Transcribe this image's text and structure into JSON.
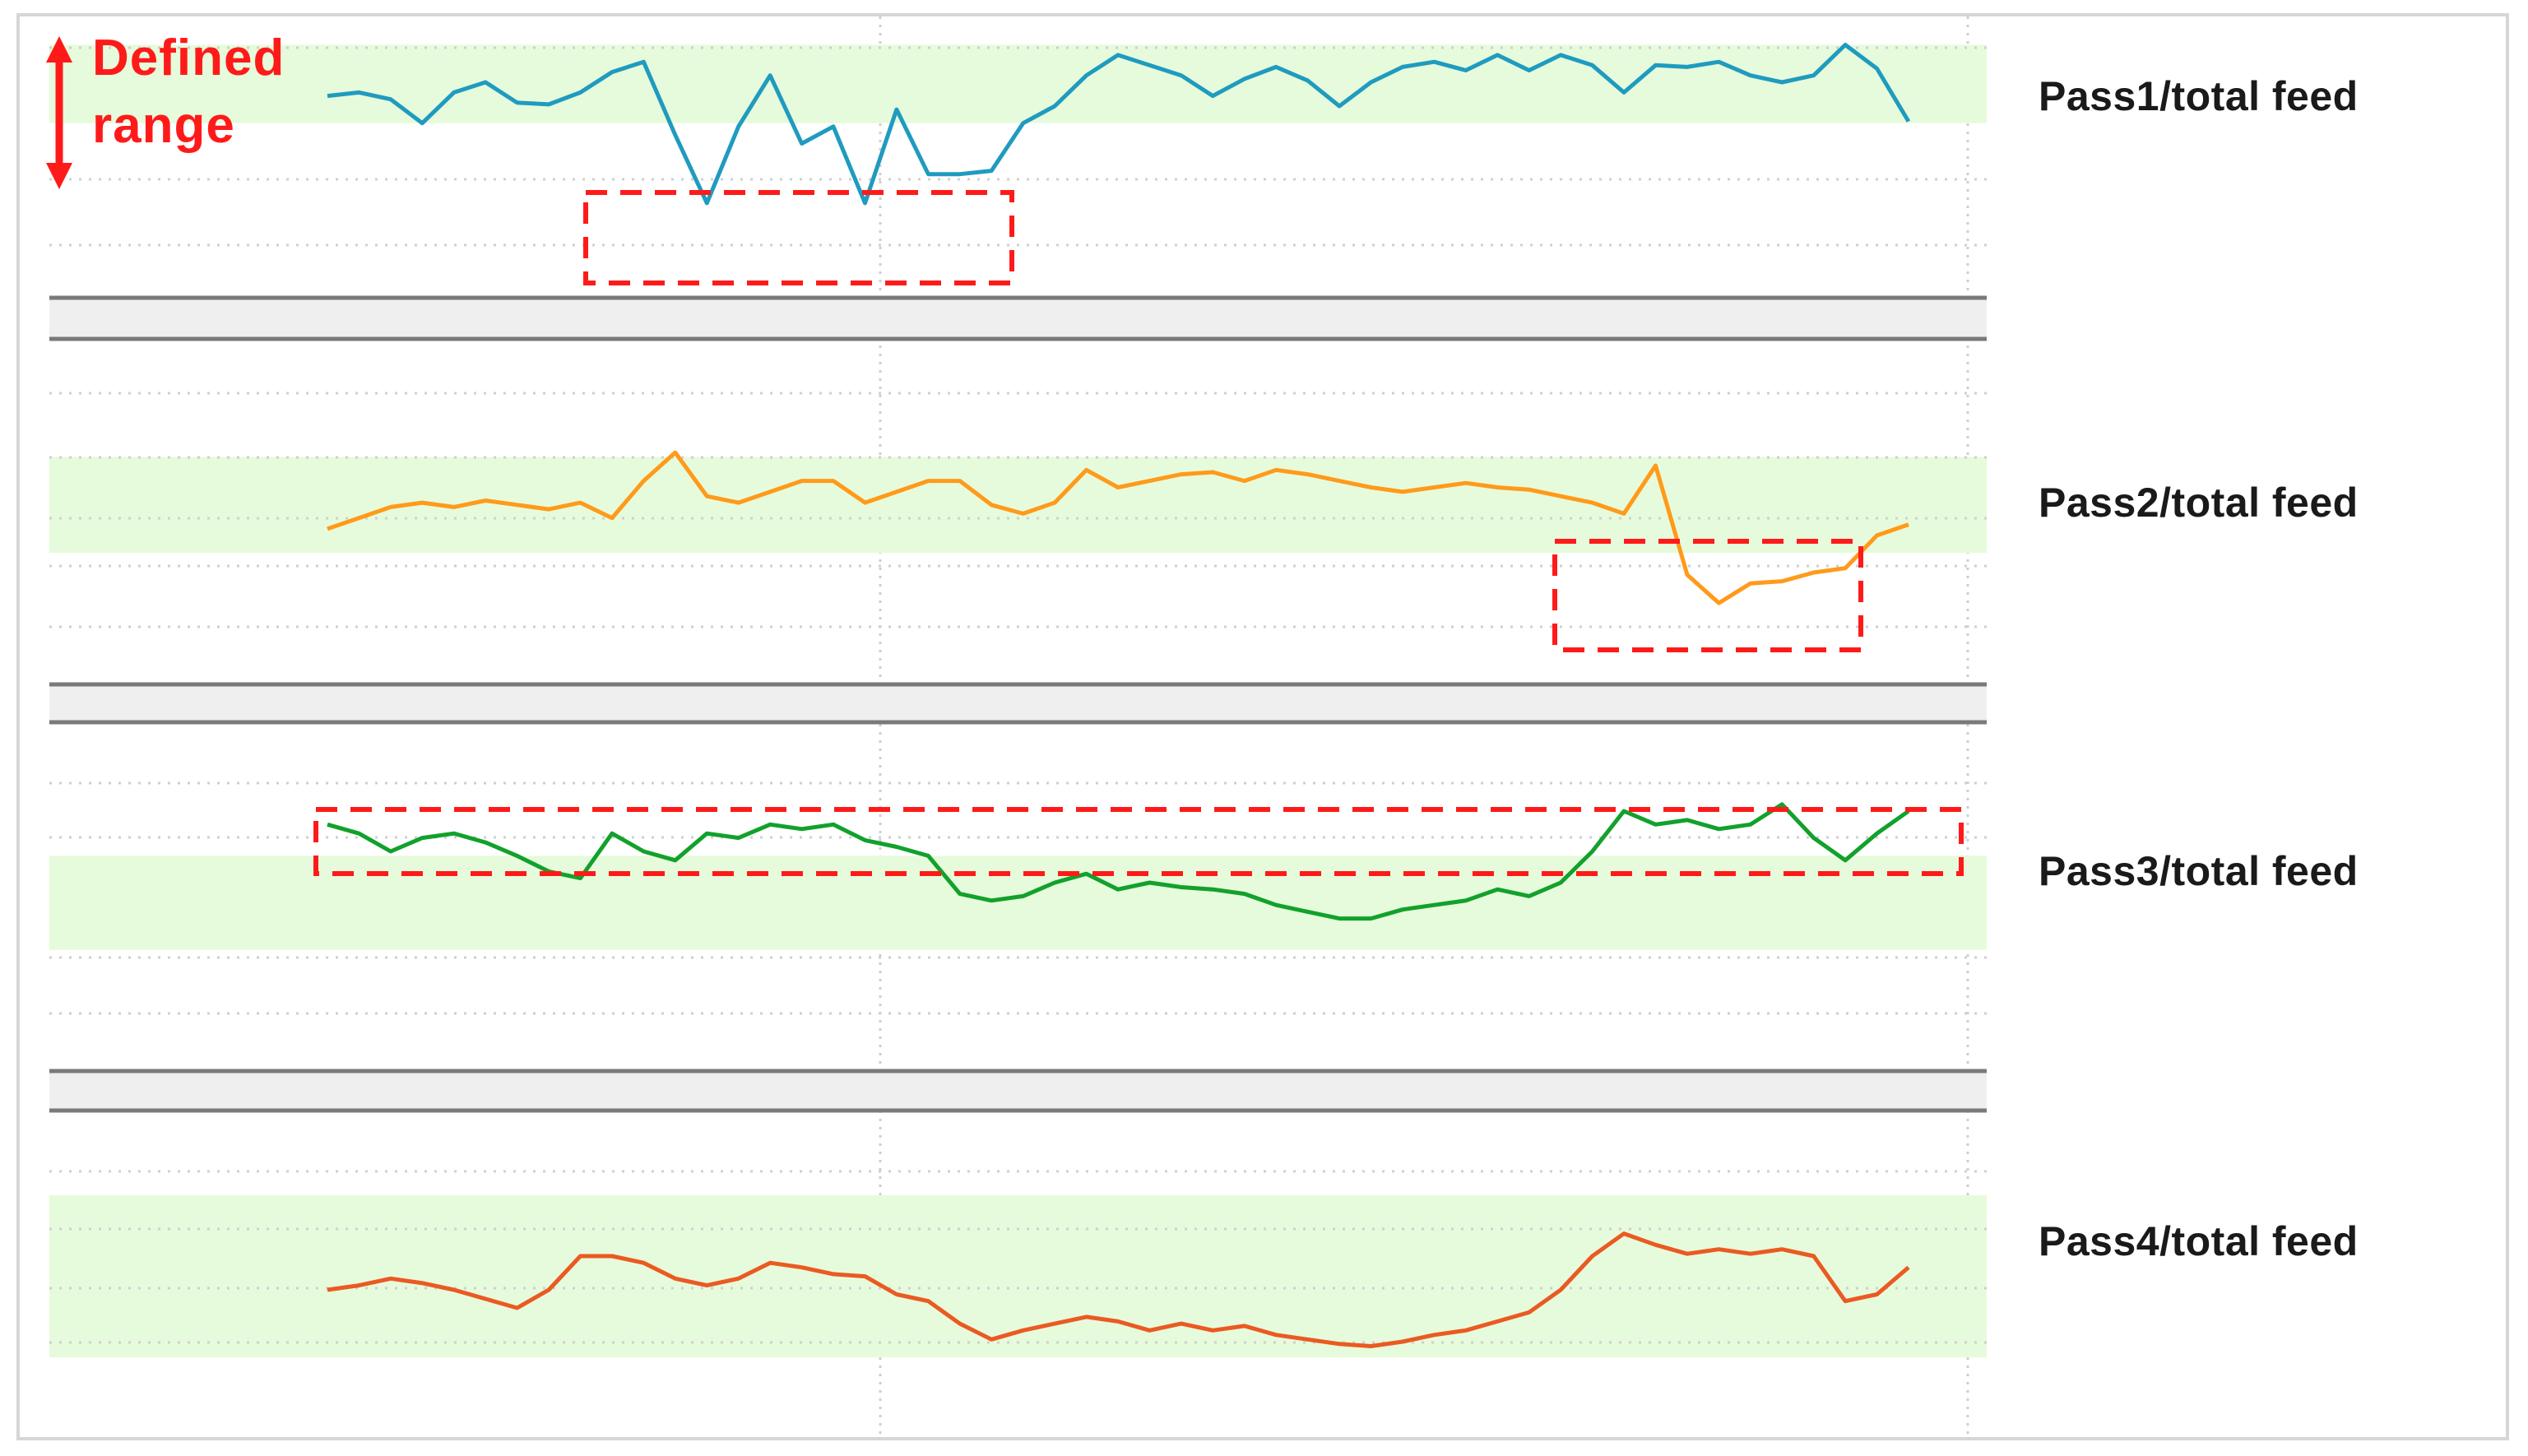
{
  "annotation": {
    "line1": "Defined",
    "line2": "range",
    "color": "#ff1a1a"
  },
  "colors": {
    "band": "#e6fbdb",
    "grid": "#cfcfcf",
    "highlight_box": "#ff1a1a",
    "separator": "#7a7a7a"
  },
  "chart_data": [
    {
      "type": "line",
      "label": "Pass1/total feed",
      "color": "#1f9bbf",
      "grid": true,
      "x": [
        0,
        2,
        4,
        6,
        8,
        10,
        12,
        14,
        16,
        18,
        20,
        22,
        24,
        26,
        28,
        30,
        32,
        34,
        36,
        38,
        40,
        42,
        44,
        46,
        48,
        50,
        52,
        54,
        56,
        58,
        60,
        62,
        64,
        66,
        68,
        70,
        72,
        74,
        76,
        78,
        80,
        82,
        84,
        86,
        88,
        90,
        92,
        94,
        96,
        98,
        100
      ],
      "values": [
        0.78,
        0.8,
        0.76,
        0.62,
        0.8,
        0.86,
        0.74,
        0.73,
        0.8,
        0.92,
        0.98,
        0.55,
        0.15,
        0.6,
        0.9,
        0.5,
        0.6,
        0.15,
        0.7,
        0.32,
        0.32,
        0.34,
        0.62,
        0.72,
        0.9,
        1.02,
        0.96,
        0.9,
        0.78,
        0.88,
        0.95,
        0.87,
        0.72,
        0.86,
        0.95,
        0.98,
        0.93,
        1.02,
        0.93,
        1.02,
        0.96,
        0.8,
        0.96,
        0.95,
        0.98,
        0.9,
        0.86,
        0.9,
        1.08,
        0.94,
        0.63
      ],
      "band": [
        0.62,
        1.08
      ]
    },
    {
      "type": "line",
      "label": "Pass2/total feed",
      "color": "#ff9a1a",
      "grid": true,
      "x": [
        0,
        2,
        4,
        6,
        8,
        10,
        12,
        14,
        16,
        18,
        20,
        22,
        24,
        26,
        28,
        30,
        32,
        34,
        36,
        38,
        40,
        42,
        44,
        46,
        48,
        50,
        52,
        54,
        56,
        58,
        60,
        62,
        64,
        66,
        68,
        70,
        72,
        74,
        76,
        78,
        80,
        82,
        84,
        86,
        88,
        90,
        92,
        94,
        96,
        98,
        100
      ],
      "values": [
        0.33,
        0.38,
        0.43,
        0.45,
        0.43,
        0.46,
        0.44,
        0.42,
        0.45,
        0.38,
        0.55,
        0.68,
        0.48,
        0.45,
        0.5,
        0.55,
        0.55,
        0.45,
        0.5,
        0.55,
        0.55,
        0.44,
        0.4,
        0.45,
        0.6,
        0.52,
        0.55,
        0.58,
        0.59,
        0.55,
        0.6,
        0.58,
        0.55,
        0.52,
        0.5,
        0.52,
        0.54,
        0.52,
        0.51,
        0.48,
        0.45,
        0.4,
        0.62,
        0.12,
        -0.01,
        0.08,
        0.09,
        0.13,
        0.15,
        0.3,
        0.35
      ],
      "band": [
        0.22,
        0.66
      ]
    },
    {
      "type": "line",
      "label": "Pass3/total feed",
      "color": "#12a12c",
      "grid": true,
      "x": [
        0,
        2,
        4,
        6,
        8,
        10,
        12,
        14,
        16,
        18,
        20,
        22,
        24,
        26,
        28,
        30,
        32,
        34,
        36,
        38,
        40,
        42,
        44,
        46,
        48,
        50,
        52,
        54,
        56,
        58,
        60,
        62,
        64,
        66,
        68,
        70,
        72,
        74,
        76,
        78,
        80,
        82,
        84,
        86,
        88,
        90,
        92,
        94,
        96,
        98,
        100
      ],
      "values": [
        0.84,
        0.8,
        0.72,
        0.78,
        0.8,
        0.76,
        0.7,
        0.63,
        0.6,
        0.8,
        0.72,
        0.68,
        0.8,
        0.78,
        0.84,
        0.82,
        0.84,
        0.77,
        0.74,
        0.7,
        0.53,
        0.5,
        0.52,
        0.58,
        0.62,
        0.55,
        0.58,
        0.56,
        0.55,
        0.53,
        0.48,
        0.45,
        0.42,
        0.42,
        0.46,
        0.48,
        0.5,
        0.55,
        0.52,
        0.58,
        0.72,
        0.9,
        0.84,
        0.86,
        0.82,
        0.84,
        0.93,
        0.78,
        0.68,
        0.8,
        0.9
      ],
      "band": [
        0.28,
        0.7
      ]
    },
    {
      "type": "line",
      "label": "Pass4/total feed",
      "color": "#ea5a22",
      "grid": true,
      "x": [
        0,
        2,
        4,
        6,
        8,
        10,
        12,
        14,
        16,
        18,
        20,
        22,
        24,
        26,
        28,
        30,
        32,
        34,
        36,
        38,
        40,
        42,
        44,
        46,
        48,
        50,
        52,
        54,
        56,
        58,
        60,
        62,
        64,
        66,
        68,
        70,
        72,
        74,
        76,
        78,
        80,
        82,
        84,
        86,
        88,
        90,
        92,
        94,
        96,
        98,
        100
      ],
      "values": [
        0.4,
        0.42,
        0.45,
        0.43,
        0.4,
        0.36,
        0.32,
        0.4,
        0.55,
        0.55,
        0.52,
        0.45,
        0.42,
        0.45,
        0.52,
        0.5,
        0.47,
        0.46,
        0.38,
        0.35,
        0.25,
        0.18,
        0.22,
        0.25,
        0.28,
        0.26,
        0.22,
        0.25,
        0.22,
        0.24,
        0.2,
        0.18,
        0.16,
        0.15,
        0.17,
        0.2,
        0.22,
        0.26,
        0.3,
        0.4,
        0.55,
        0.65,
        0.6,
        0.56,
        0.58,
        0.56,
        0.58,
        0.55,
        0.35,
        0.38,
        0.5
      ],
      "band": [
        0.1,
        0.82
      ]
    }
  ]
}
